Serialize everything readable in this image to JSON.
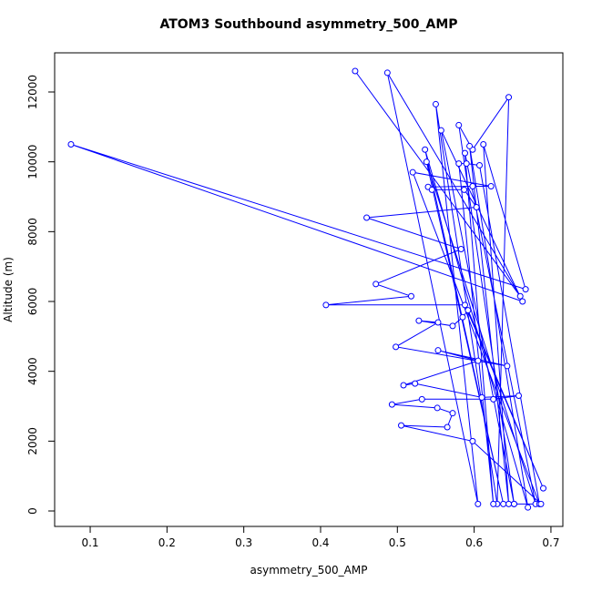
{
  "chart_data": {
    "type": "line",
    "title": "ATOM3 Southbound asymmetry_500_AMP",
    "x_label": "asymmetry_500_AMP",
    "y_label": "Altitude (m)",
    "markers": "open-circle",
    "grid": false,
    "x": [
      0.445,
      0.66,
      0.487,
      0.605,
      0.55,
      0.63,
      0.645,
      0.598,
      0.58,
      0.652,
      0.557,
      0.663,
      0.075,
      0.667,
      0.612,
      0.645,
      0.594,
      0.67,
      0.536,
      0.638,
      0.538,
      0.68,
      0.588,
      0.625,
      0.58,
      0.59,
      0.607,
      0.685,
      0.52,
      0.622,
      0.598,
      0.54,
      0.545,
      0.587,
      0.603,
      0.46,
      0.583,
      0.472,
      0.518,
      0.407,
      0.588,
      0.69,
      0.592,
      0.585,
      0.572,
      0.528,
      0.553,
      0.498,
      0.643,
      0.553,
      0.605,
      0.508,
      0.523,
      0.61,
      0.658,
      0.625,
      0.532,
      0.493,
      0.552,
      0.572,
      0.565,
      0.505,
      0.598,
      0.687,
      0.652
    ],
    "xlim": [
      0.0537,
      0.7155
    ],
    "xticks": [
      0.1,
      0.2,
      0.3,
      0.4,
      0.5,
      0.6,
      0.7
    ],
    "series": [
      {
        "name": "Altitude",
        "color": "#0000ff",
        "values": [
          12600,
          6150,
          12550,
          200,
          11650,
          200,
          11850,
          10350,
          11050,
          200,
          10900,
          6000,
          10500,
          6350,
          10500,
          200,
          10450,
          100,
          10350,
          200,
          10000,
          200,
          10250,
          200,
          9950,
          9950,
          9900,
          200,
          9700,
          9300,
          9300,
          9280,
          9200,
          9200,
          8700,
          8400,
          7500,
          6500,
          6150,
          5900,
          5900,
          650,
          5750,
          5550,
          5300,
          5450,
          5400,
          4700,
          4150,
          4600,
          4300,
          3600,
          3650,
          3250,
          3300,
          3200,
          3200,
          3050,
          2950,
          2800,
          2400,
          2450,
          2000,
          200,
          200
        ]
      }
    ],
    "ylim": [
      -443,
      13122
    ],
    "yticks": [
      0,
      2000,
      4000,
      6000,
      8000,
      10000,
      12000
    ]
  }
}
